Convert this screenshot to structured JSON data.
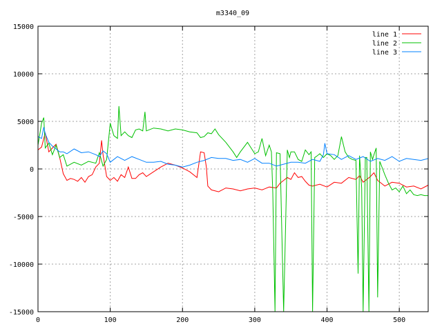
{
  "chart_data": {
    "type": "line",
    "title": "m3340_09",
    "xlabel": "",
    "ylabel": "",
    "xlim": [
      0,
      540
    ],
    "ylim": [
      -15000,
      15000
    ],
    "xticks": [
      0,
      100,
      200,
      300,
      400,
      500
    ],
    "yticks": [
      -15000,
      -10000,
      -5000,
      0,
      5000,
      10000,
      15000
    ],
    "grid": true,
    "legend_position": "top-right",
    "series": [
      {
        "name": "line 1",
        "color": "#ff0000",
        "x": [
          0,
          5,
          10,
          15,
          20,
          25,
          30,
          35,
          40,
          45,
          50,
          55,
          60,
          65,
          70,
          75,
          80,
          85,
          88,
          90,
          95,
          100,
          105,
          110,
          115,
          120,
          125,
          130,
          135,
          140,
          145,
          150,
          160,
          170,
          180,
          190,
          200,
          210,
          220,
          225,
          230,
          233,
          235,
          240,
          250,
          260,
          270,
          280,
          290,
          300,
          310,
          320,
          330,
          335,
          340,
          345,
          350,
          355,
          360,
          365,
          370,
          375,
          380,
          390,
          400,
          410,
          420,
          430,
          440,
          445,
          450,
          455,
          460,
          465,
          470,
          480,
          490,
          500,
          510,
          520,
          530,
          540
        ],
        "y": [
          2000,
          2300,
          3800,
          1800,
          2200,
          2600,
          1200,
          -500,
          -1200,
          -1000,
          -1100,
          -1300,
          -900,
          -1400,
          -800,
          -600,
          200,
          600,
          3000,
          1500,
          -800,
          -1200,
          -900,
          -1300,
          -600,
          -900,
          200,
          -1000,
          -1000,
          -600,
          -400,
          -800,
          -300,
          200,
          600,
          400,
          100,
          -300,
          -900,
          1800,
          1700,
          200,
          -1800,
          -2200,
          -2400,
          -2000,
          -2100,
          -2300,
          -2100,
          -2000,
          -2200,
          -1900,
          -2000,
          -1500,
          -1200,
          -900,
          -1100,
          -400,
          -900,
          -800,
          -1300,
          -1700,
          -1800,
          -1600,
          -1900,
          -1400,
          -1500,
          -900,
          -1100,
          -700,
          -1400,
          -1100,
          -800,
          -400,
          -1200,
          -1800,
          -1400,
          -1500,
          -1900,
          -1800,
          -2100,
          -1700
        ]
      },
      {
        "name": "line 2",
        "color": "#00c000",
        "x": [
          0,
          5,
          8,
          10,
          15,
          20,
          25,
          30,
          35,
          40,
          50,
          60,
          70,
          80,
          85,
          90,
          95,
          100,
          105,
          110,
          112,
          115,
          120,
          125,
          130,
          135,
          140,
          145,
          148,
          150,
          160,
          170,
          180,
          190,
          200,
          210,
          220,
          225,
          230,
          235,
          240,
          245,
          250,
          260,
          270,
          275,
          280,
          290,
          300,
          305,
          310,
          315,
          320,
          323,
          325,
          328,
          330,
          335,
          340,
          345,
          348,
          350,
          355,
          360,
          365,
          370,
          375,
          378,
          380,
          383,
          385,
          390,
          395,
          400,
          405,
          410,
          415,
          420,
          425,
          430,
          435,
          440,
          443,
          445,
          448,
          450,
          453,
          455,
          458,
          460,
          463,
          465,
          468,
          470,
          473,
          475,
          480,
          485,
          490,
          495,
          500,
          505,
          510,
          515,
          520,
          525,
          530,
          535,
          540
        ],
        "y": [
          2500,
          4800,
          5400,
          2200,
          2700,
          1500,
          2500,
          1200,
          1500,
          300,
          700,
          400,
          800,
          600,
          1700,
          300,
          1000,
          4800,
          3500,
          3200,
          6600,
          3500,
          3900,
          3500,
          3300,
          4100,
          4200,
          4000,
          6000,
          4000,
          4300,
          4200,
          4000,
          4200,
          4100,
          3900,
          3800,
          3300,
          3400,
          3800,
          3700,
          4200,
          3600,
          2800,
          1800,
          1200,
          1800,
          2800,
          1600,
          1800,
          3200,
          1400,
          2500,
          1800,
          -2500,
          -15000,
          1700,
          1600,
          -15000,
          2000,
          1200,
          1800,
          1800,
          1000,
          800,
          2000,
          1500,
          1800,
          -15000,
          1200,
          1300,
          1600,
          1200,
          1600,
          1400,
          1000,
          1400,
          3400,
          1800,
          1200,
          1000,
          900,
          -11000,
          1400,
          -2000,
          -15000,
          1200,
          1200,
          -15000,
          1800,
          1000,
          1500,
          2200,
          -13500,
          800,
          400,
          -600,
          -1500,
          -2200,
          -2000,
          -2400,
          -1800,
          -2600,
          -2200,
          -2700,
          -2800,
          -2700,
          -2800,
          -2800
        ]
      },
      {
        "name": "line 3",
        "color": "#0080ff",
        "x": [
          0,
          5,
          8,
          10,
          15,
          20,
          25,
          30,
          35,
          40,
          50,
          60,
          70,
          80,
          85,
          90,
          95,
          100,
          110,
          120,
          130,
          140,
          150,
          160,
          170,
          180,
          190,
          200,
          210,
          220,
          230,
          240,
          250,
          260,
          270,
          280,
          290,
          300,
          310,
          320,
          330,
          340,
          350,
          360,
          370,
          380,
          390,
          395,
          397,
          400,
          410,
          420,
          430,
          440,
          450,
          460,
          470,
          480,
          490,
          500,
          510,
          520,
          530,
          540
        ],
        "y": [
          3400,
          3200,
          4400,
          3700,
          2800,
          2400,
          2100,
          1800,
          1800,
          1600,
          2100,
          1700,
          1800,
          1500,
          1300,
          1900,
          1600,
          700,
          1300,
          900,
          1300,
          1000,
          700,
          700,
          800,
          500,
          400,
          200,
          400,
          700,
          900,
          1200,
          1100,
          1100,
          900,
          1000,
          700,
          1100,
          600,
          600,
          300,
          500,
          700,
          700,
          600,
          1000,
          800,
          1500,
          2700,
          1600,
          1500,
          1000,
          1400,
          1000,
          1300,
          800,
          1100,
          900,
          1300,
          800,
          1100,
          1000,
          900,
          1100
        ]
      }
    ]
  }
}
